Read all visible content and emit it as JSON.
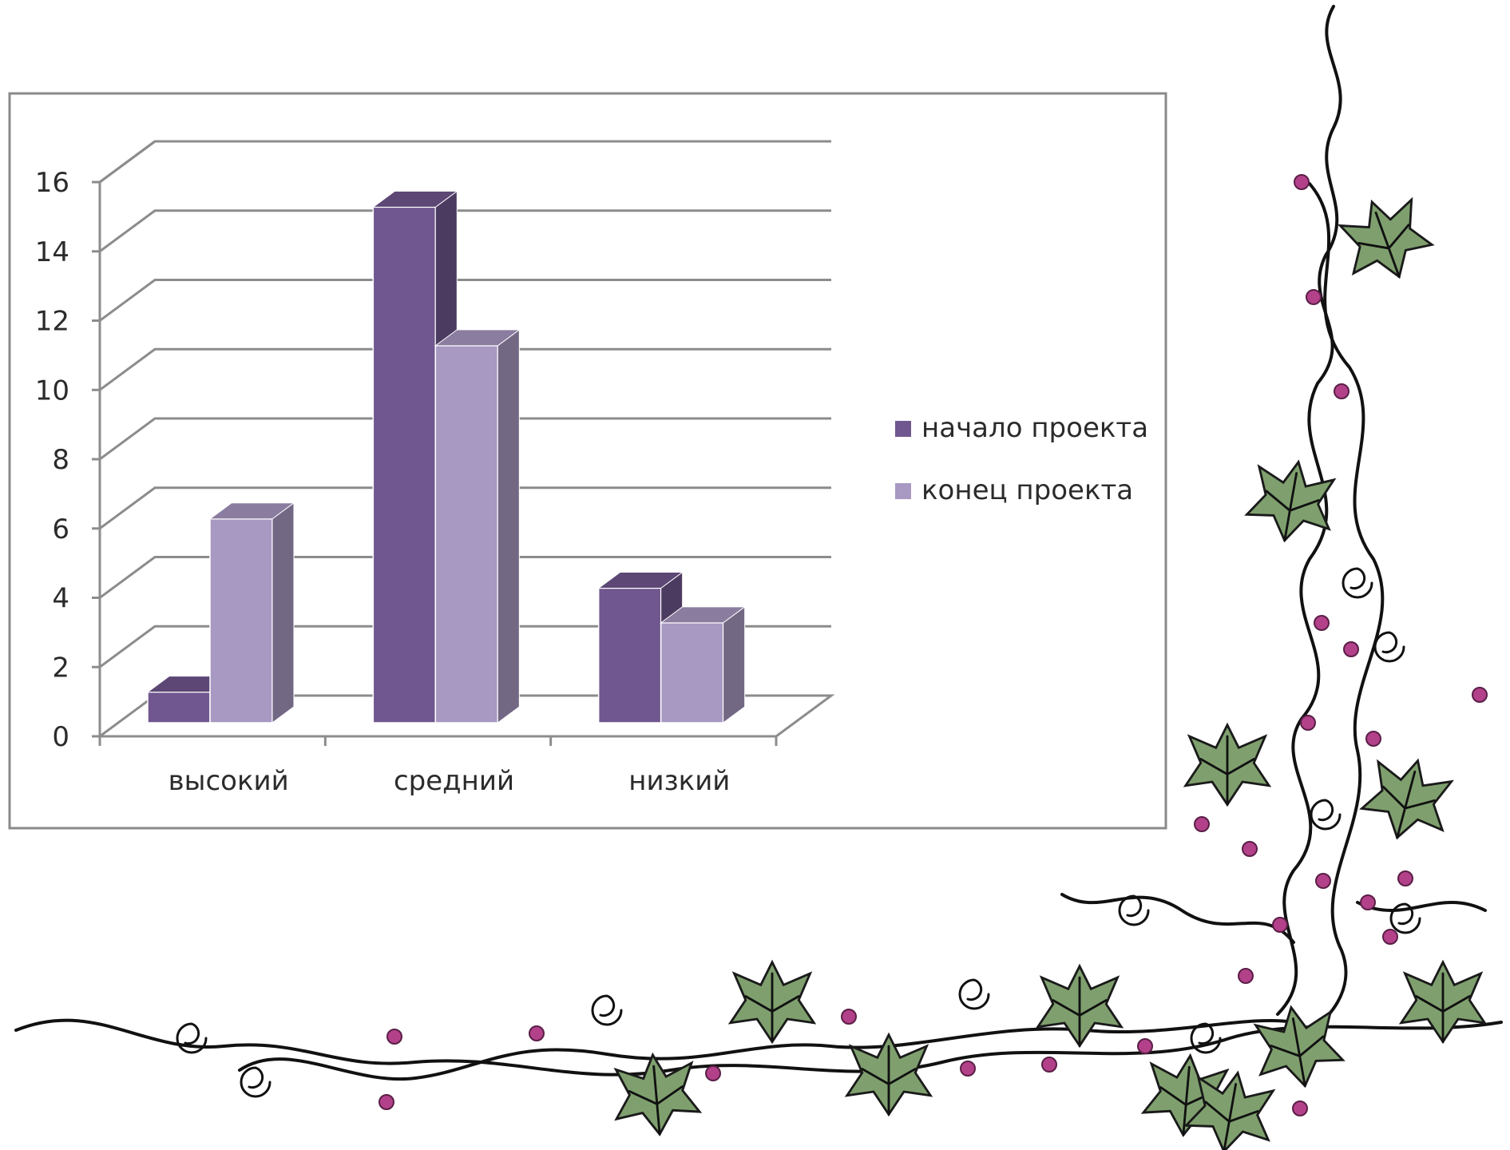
{
  "chart_data": {
    "type": "bar",
    "style": "3d-clustered-column",
    "categories": [
      "высокий",
      "средний",
      "низкий"
    ],
    "series": [
      {
        "name": "начало проекта",
        "values": [
          1,
          15,
          4
        ],
        "color": "#70578f"
      },
      {
        "name": "конец проекта",
        "values": [
          6,
          11,
          3
        ],
        "color": "#a899c2"
      }
    ],
    "yticks": [
      "0",
      "2",
      "4",
      "6",
      "8",
      "10",
      "12",
      "14",
      "16"
    ],
    "ylim": [
      0,
      16
    ],
    "grid": true,
    "legend_position": "right"
  },
  "decoration": {
    "description_icon": "grape-vine-border",
    "leaf_color": "#7fa06e",
    "berry_color": "#b3418a"
  }
}
